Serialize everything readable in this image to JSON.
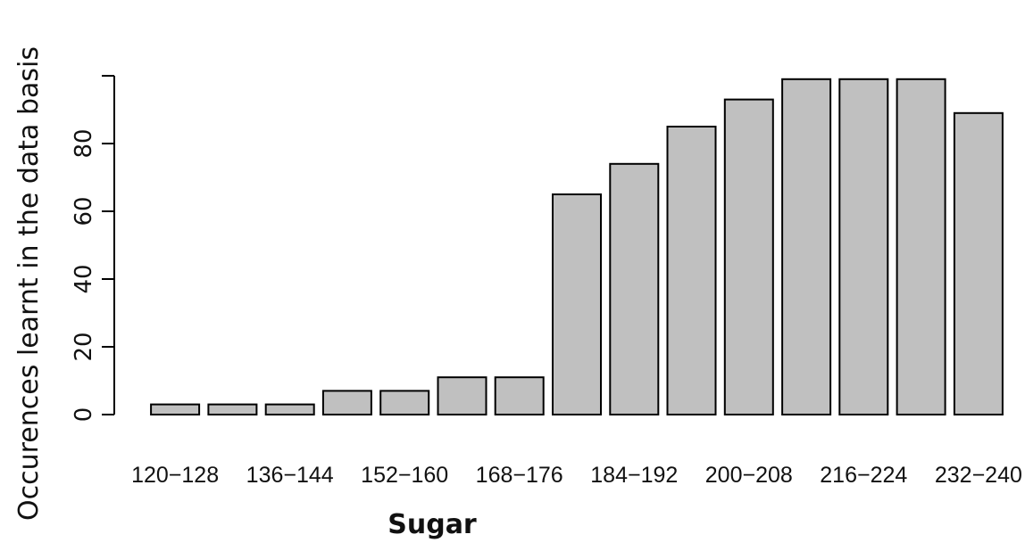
{
  "chart_data": {
    "type": "bar",
    "categories": [
      "120-128",
      "128-136",
      "136-144",
      "144-152",
      "152-160",
      "160-168",
      "168-176",
      "176-184",
      "184-192",
      "192-200",
      "200-208",
      "208-216",
      "216-224",
      "224-232",
      "232-240"
    ],
    "shown_category_labels": [
      "120−128",
      "136−144",
      "152−160",
      "168−176",
      "184−192",
      "200−208",
      "216−224",
      "232−240"
    ],
    "values": [
      3,
      3,
      3,
      7,
      7,
      11,
      11,
      65,
      74,
      85,
      93,
      99,
      99,
      99,
      89
    ],
    "title": "",
    "xlabel": "Sugar",
    "ylabel": "Occurences learnt in the data basis",
    "ylim": [
      0,
      100
    ],
    "yticks": [
      0,
      20,
      40,
      60,
      80
    ],
    "bar_color": "#c0c0c0",
    "bar_edge_color": "#000000",
    "grid": false
  }
}
